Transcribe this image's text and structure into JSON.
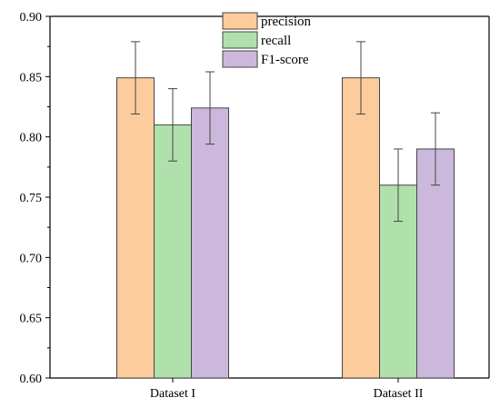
{
  "chart_data": {
    "type": "bar",
    "categories": [
      "Dataset I",
      "Dataset II"
    ],
    "series": [
      {
        "name": "precision",
        "values": [
          0.849,
          0.849
        ],
        "errors": [
          0.03,
          0.03
        ],
        "color": "#fdcc9c"
      },
      {
        "name": "recall",
        "values": [
          0.81,
          0.76
        ],
        "errors": [
          0.03,
          0.03
        ],
        "color": "#b0e0ac"
      },
      {
        "name": "F1-score",
        "values": [
          0.824,
          0.79
        ],
        "errors": [
          0.03,
          0.03
        ],
        "color": "#cbb8dc"
      }
    ],
    "title": "",
    "xlabel": "",
    "ylabel": "",
    "ylim": [
      0.6,
      0.9
    ],
    "yticks": [
      "0.60",
      "0.65",
      "0.70",
      "0.75",
      "0.80",
      "0.85",
      "0.90"
    ],
    "grid": false,
    "legend_position": "top-center"
  }
}
